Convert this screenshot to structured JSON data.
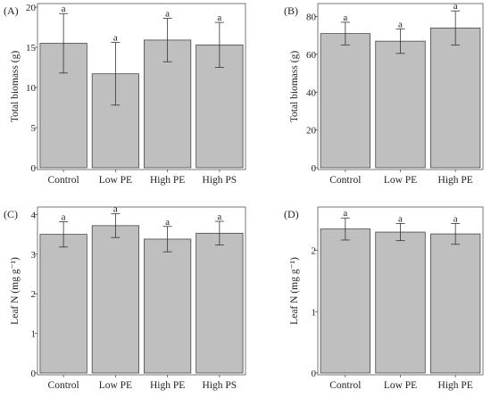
{
  "chart_data": [
    {
      "panel_label": "(A)",
      "type": "bar",
      "ylabel": "Total biomass (g)",
      "categories": [
        "Control",
        "Low PE",
        "High PE",
        "High PS"
      ],
      "values": [
        15.5,
        11.7,
        15.9,
        15.3
      ],
      "errors": [
        3.7,
        3.9,
        2.7,
        2.8
      ],
      "sig_labels": [
        "a",
        "a",
        "a",
        "a"
      ],
      "ylim": [
        0,
        20
      ],
      "yticks": [
        0,
        5,
        10,
        15,
        20
      ],
      "grid": false
    },
    {
      "panel_label": "(B)",
      "type": "bar",
      "ylabel": "Total biomass (g)",
      "categories": [
        "Control",
        "Low PE",
        "High PE"
      ],
      "values": [
        71,
        67,
        74
      ],
      "errors": [
        6,
        6.5,
        9
      ],
      "sig_labels": [
        "a",
        "a",
        "a"
      ],
      "ylim": [
        0,
        85
      ],
      "yticks": [
        0,
        20,
        40,
        60,
        80
      ],
      "grid": false
    },
    {
      "panel_label": "(C)",
      "type": "bar",
      "ylabel": "Leaf N (mg g⁻¹)",
      "categories": [
        "Control",
        "Low PE",
        "High PE",
        "High PS"
      ],
      "values": [
        3.5,
        3.72,
        3.38,
        3.53
      ],
      "errors": [
        0.32,
        0.3,
        0.32,
        0.3
      ],
      "sig_labels": [
        "a",
        "a",
        "a",
        "a"
      ],
      "ylim": [
        0,
        4.1
      ],
      "yticks": [
        0,
        1,
        2,
        3,
        4
      ],
      "grid": false
    },
    {
      "panel_label": "(D)",
      "type": "bar",
      "ylabel": "Leaf N (mg g⁻¹)",
      "categories": [
        "Control",
        "Low PE",
        "High PE"
      ],
      "values": [
        2.35,
        2.3,
        2.27
      ],
      "errors": [
        0.18,
        0.14,
        0.17
      ],
      "sig_labels": [
        "a",
        "a",
        "a"
      ],
      "ylim": [
        0,
        2.65
      ],
      "yticks": [
        0,
        1,
        2
      ],
      "grid": false
    }
  ]
}
